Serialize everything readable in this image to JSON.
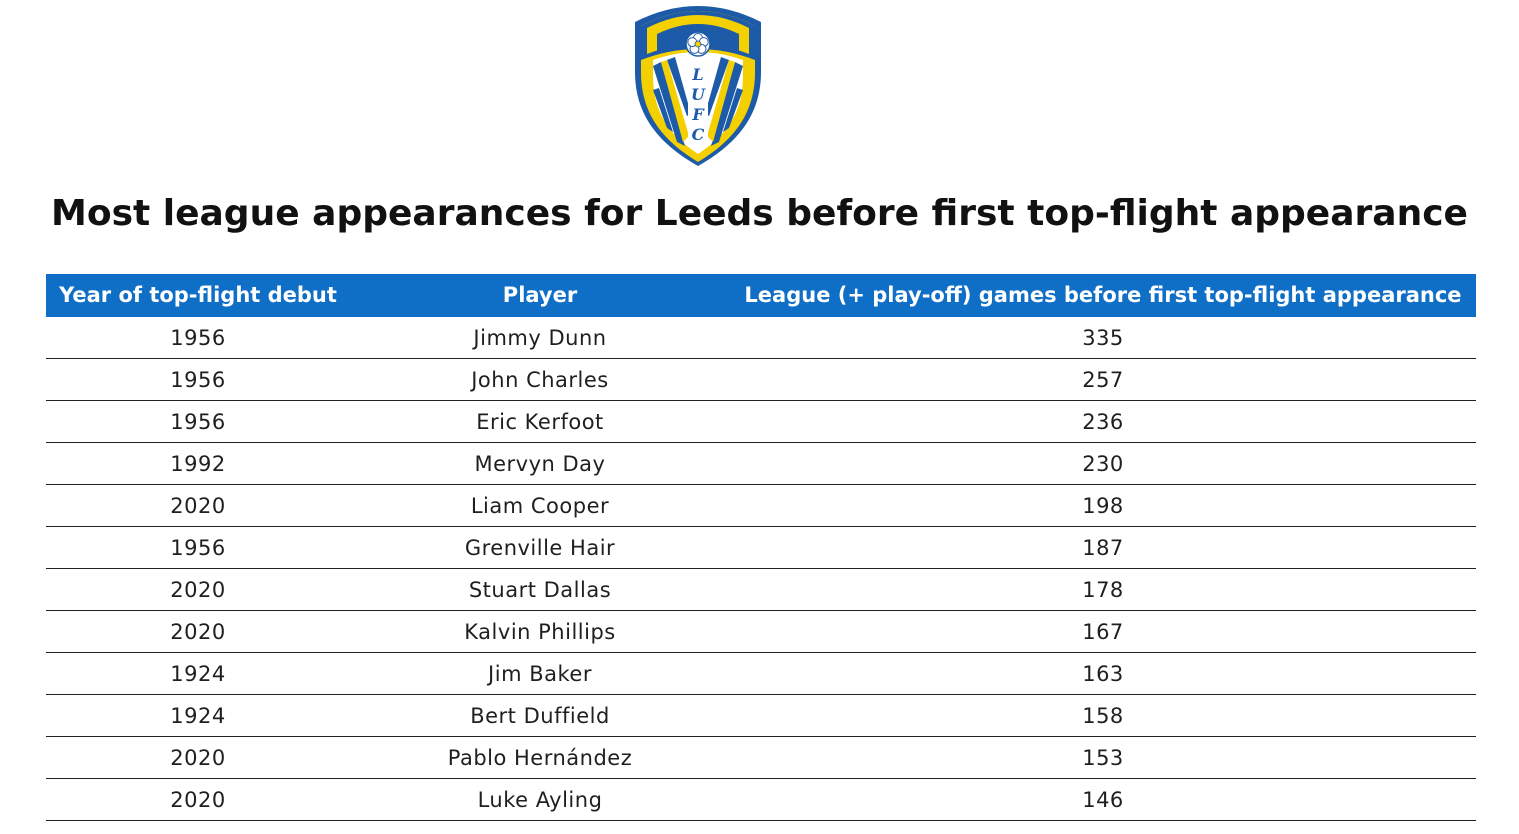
{
  "title": "Most league appearances for Leeds before first top-flight appearance",
  "crest": {
    "text": "LUFC",
    "colors": {
      "yellow": "#f5d000",
      "blue": "#1d5ba8",
      "white": "#ffffff"
    }
  },
  "colors": {
    "header_bg": "#0f6fc6",
    "header_text": "#ffffff",
    "row_rule": "#222222"
  },
  "chart_data": {
    "type": "table",
    "columns": [
      "Year of top-flight debut",
      "Player",
      "League (+ play-off) games before first top-flight appearance"
    ],
    "rows": [
      [
        "1956",
        "Jimmy Dunn",
        "335"
      ],
      [
        "1956",
        "John Charles",
        "257"
      ],
      [
        "1956",
        "Eric Kerfoot",
        "236"
      ],
      [
        "1992",
        "Mervyn Day",
        "230"
      ],
      [
        "2020",
        "Liam Cooper",
        "198"
      ],
      [
        "1956",
        "Grenville Hair",
        "187"
      ],
      [
        "2020",
        "Stuart Dallas",
        "178"
      ],
      [
        "2020",
        "Kalvin Phillips",
        "167"
      ],
      [
        "1924",
        "Jim Baker",
        "163"
      ],
      [
        "1924",
        "Bert Duffield",
        "158"
      ],
      [
        "2020",
        "Pablo Hernández",
        "153"
      ],
      [
        "2020",
        "Luke Ayling",
        "146"
      ]
    ]
  }
}
